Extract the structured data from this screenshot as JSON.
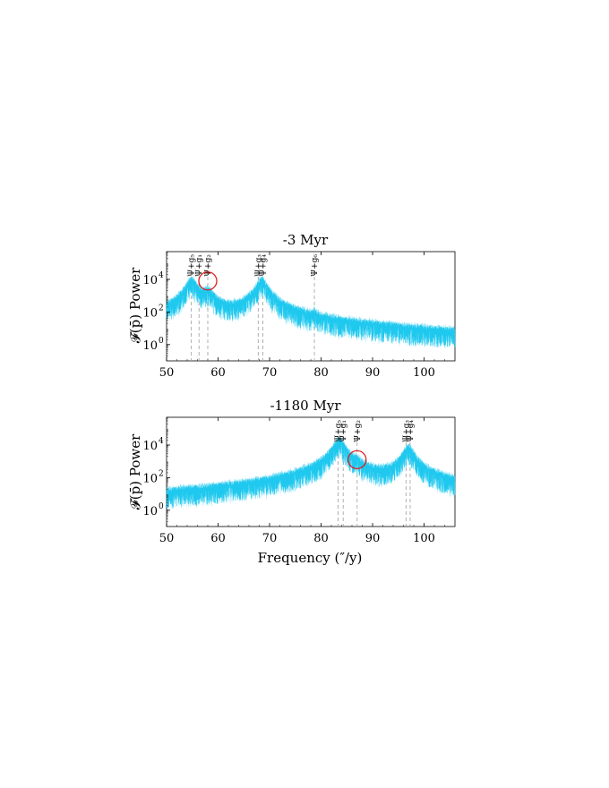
{
  "chart_data": [
    {
      "type": "line",
      "title": "-3 Myr",
      "ylabel": "𝓕(p̄) Power",
      "xlabel": "",
      "xlim": [
        50,
        106
      ],
      "ylim_log10": [
        -1,
        5.7
      ],
      "xticks": [
        "50",
        "60",
        "70",
        "80",
        "90",
        "100"
      ],
      "yticks": [
        {
          "base": "10",
          "exp": "0"
        },
        {
          "base": "10",
          "exp": "2"
        },
        {
          "base": "10",
          "exp": "4"
        }
      ],
      "scale_y": "log",
      "color": "#1fc8ee",
      "peaks": [
        {
          "x": 54.8,
          "log": 3.9,
          "w": 0.8
        },
        {
          "x": 56.3,
          "log": 1.9,
          "w": 0.5
        },
        {
          "x": 58.0,
          "log": 3.2,
          "w": 0.9
        },
        {
          "x": 67.2,
          "log": 2.0,
          "w": 0.7
        },
        {
          "x": 68.5,
          "log": 3.9,
          "w": 0.8
        },
        {
          "x": 78.7,
          "log": 1.6,
          "w": 0.25
        },
        {
          "x": 86.2,
          "log": -0.1,
          "w": 0.6
        },
        {
          "x": 89.6,
          "log": -0.2,
          "w": 0.6
        },
        {
          "x": 99.6,
          "log": -0.2,
          "w": 0.5
        }
      ],
      "markers": [
        {
          "x": 54.8,
          "label": "Ψ+g₅"
        },
        {
          "x": 56.3,
          "label": "Ψ+g₁"
        },
        {
          "x": 58.0,
          "label": "Ψ+g₂"
        },
        {
          "x": 67.8,
          "label": "Ψ+g₃"
        },
        {
          "x": 68.7,
          "label": "Ψ+g₄"
        },
        {
          "x": 78.7,
          "label": "Ψ+g₆"
        }
      ],
      "highlight": {
        "x": 58.0,
        "log": 3.9
      }
    },
    {
      "type": "line",
      "title": "-1180 Myr",
      "ylabel": "𝓕(p̄) Power",
      "xlabel": "Frequency (″/y)",
      "xlim": [
        50,
        106
      ],
      "ylim_log10": [
        -1,
        5.7
      ],
      "xticks": [
        "50",
        "60",
        "70",
        "80",
        "90",
        "100"
      ],
      "yticks": [
        {
          "base": "10",
          "exp": "0"
        },
        {
          "base": "10",
          "exp": "2"
        },
        {
          "base": "10",
          "exp": "4"
        }
      ],
      "scale_y": "log",
      "color": "#1fc8ee",
      "peaks": [
        {
          "x": 83.5,
          "log": 4.2,
          "w": 0.9
        },
        {
          "x": 84.5,
          "log": 2.4,
          "w": 0.6
        },
        {
          "x": 87.0,
          "log": 2.6,
          "w": 0.5
        },
        {
          "x": 97.0,
          "log": 3.8,
          "w": 0.8
        }
      ],
      "markers": [
        {
          "x": 83.3,
          "label": "Ψ+g₅"
        },
        {
          "x": 84.3,
          "label": "Ψ+g₁"
        },
        {
          "x": 87.0,
          "label": "Ψ+g₂"
        },
        {
          "x": 96.5,
          "label": "Ψ+g₃"
        },
        {
          "x": 97.3,
          "label": "Ψ+g₄"
        }
      ],
      "highlight": {
        "x": 87.0,
        "log": 3.1
      }
    }
  ]
}
